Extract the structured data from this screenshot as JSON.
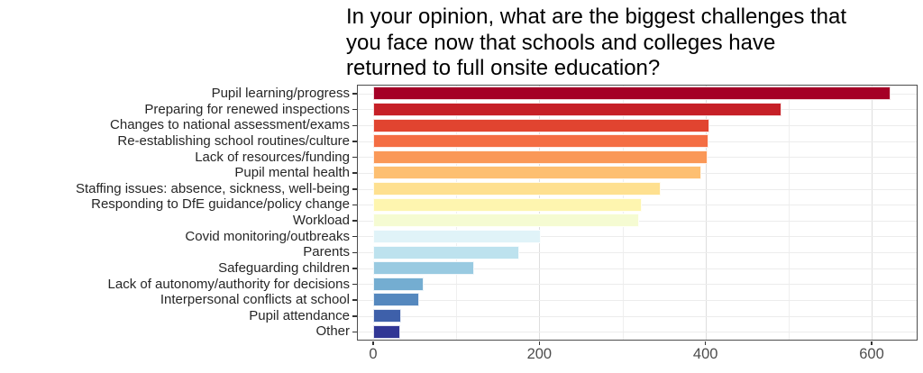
{
  "chart_data": {
    "type": "bar",
    "orientation": "horizontal",
    "title": "In your opinion, what are the biggest challenges that you face now that schools and colleges have returned to full onsite education?",
    "title_lines": [
      "In your opinion, what are the biggest challenges that",
      "you face now that schools and colleges have",
      "returned to full onsite education?"
    ],
    "categories": [
      "Pupil learning/progress",
      "Preparing for renewed inspections",
      "Changes to national assessment/exams",
      "Re-establishing school routines/culture",
      "Lack of resources/funding",
      "Pupil mental health",
      "Staffing issues: absence, sickness, well-being",
      "Responding to DfE guidance/policy change",
      "Workload",
      "Covid monitoring/outbreaks",
      "Parents",
      "Safeguarding children",
      "Lack of autonomy/authority for decisions",
      "Interpersonal conflicts at school",
      "Pupil attendance",
      "Other"
    ],
    "values": [
      623,
      491,
      405,
      404,
      402,
      395,
      346,
      323,
      320,
      202,
      176,
      122,
      61,
      55,
      34,
      33
    ],
    "bar_colors": [
      "#A50026",
      "#C62027",
      "#E14430",
      "#F46D43",
      "#FA9857",
      "#FDBF71",
      "#FEE090",
      "#FEF5AF",
      "#F5FBD2",
      "#E0F3F8",
      "#BDE2EE",
      "#99CAE1",
      "#74ADD1",
      "#5588BE",
      "#3E60AA",
      "#313695"
    ],
    "xlabel": "",
    "ylabel": "",
    "xlim": [
      0,
      655
    ],
    "x_ticks": [
      0,
      200,
      400,
      600
    ],
    "x_tick_labels": [
      "0",
      "200",
      "400",
      "600"
    ],
    "x_minor_gridlines": [
      100,
      300,
      500
    ],
    "grid": true,
    "legend": "none",
    "colors": {
      "panel_border": "#4d4d4d",
      "major_grid": "#dedede",
      "minor_grid": "#efefef",
      "axis_text": "#4d4d4d"
    }
  }
}
